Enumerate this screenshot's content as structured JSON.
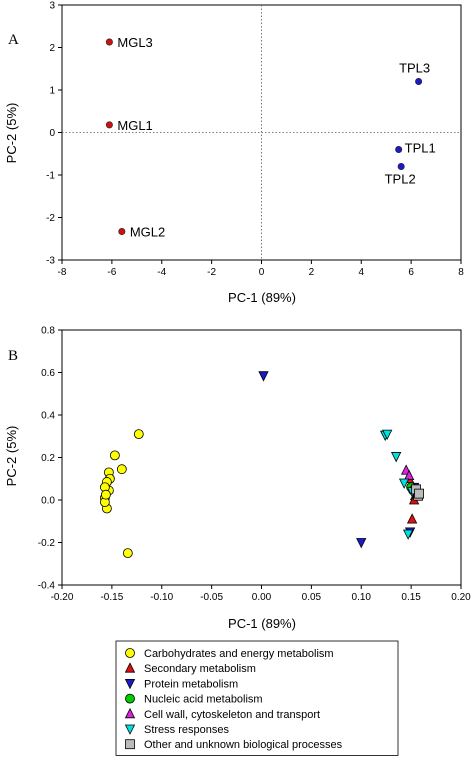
{
  "chart_data": [
    {
      "panel": "A",
      "type": "scatter",
      "xlabel": "PC-1 (89%)",
      "ylabel": "PC-2 (5%)",
      "xlim": [
        -8,
        8
      ],
      "ylim": [
        -3,
        3
      ],
      "xticks": [
        -8,
        -6,
        -4,
        -2,
        0,
        2,
        4,
        6,
        8
      ],
      "yticks": [
        -3,
        -2,
        -1,
        0,
        1,
        2,
        3
      ],
      "reference_lines": "dotted at x=0 and y=0",
      "points": [
        {
          "label": "MGL3",
          "x": -6.1,
          "y": 2.13,
          "color": "#cc1111"
        },
        {
          "label": "MGL1",
          "x": -6.1,
          "y": 0.18,
          "color": "#cc1111"
        },
        {
          "label": "MGL2",
          "x": -5.6,
          "y": -2.33,
          "color": "#cc1111"
        },
        {
          "label": "TPL3",
          "x": 6.3,
          "y": 1.2,
          "color": "#1a1acc"
        },
        {
          "label": "TPL1",
          "x": 5.5,
          "y": -0.4,
          "color": "#1a1acc"
        },
        {
          "label": "TPL2",
          "x": 5.6,
          "y": -0.8,
          "color": "#1a1acc"
        }
      ]
    },
    {
      "panel": "B",
      "type": "scatter",
      "xlabel": "PC-1 (89%)",
      "ylabel": "PC-2 (5%)",
      "xlim": [
        -0.2,
        0.2
      ],
      "ylim": [
        -0.4,
        0.8
      ],
      "xticks": [
        "-0.20",
        "-0.15",
        "-0.10",
        "-0.05",
        "0.00",
        "0.05",
        "0.10",
        "0.15",
        "0.20"
      ],
      "yticks": [
        "-0.4",
        "-0.2",
        "0.0",
        "0.2",
        "0.4",
        "0.6",
        "0.8"
      ],
      "legend_position": "below",
      "series": [
        {
          "name": "Carbohydrates and energy metabolism",
          "marker": "circle",
          "color": "#ffff00",
          "points": [
            [
              -0.123,
              0.31
            ],
            [
              -0.147,
              0.21
            ],
            [
              -0.14,
              0.145
            ],
            [
              -0.153,
              0.13
            ],
            [
              -0.152,
              0.1
            ],
            [
              -0.155,
              0.085
            ],
            [
              -0.153,
              0.045
            ],
            [
              -0.157,
              0.06
            ],
            [
              -0.157,
              0.01
            ],
            [
              -0.155,
              -0.04
            ],
            [
              -0.134,
              -0.25
            ],
            [
              -0.157,
              -0.01
            ],
            [
              -0.156,
              0.025
            ]
          ]
        },
        {
          "name": "Secondary metabolism",
          "marker": "triangle-up",
          "color": "#dd1111",
          "points": [
            [
              0.151,
              -0.09
            ],
            [
              0.148,
              0.1
            ],
            [
              0.154,
              0.02
            ],
            [
              0.153,
              0.0
            ]
          ]
        },
        {
          "name": "Protein metabolism",
          "marker": "triangle-down",
          "color": "#1a1acc",
          "points": [
            [
              0.002,
              0.585
            ],
            [
              0.1,
              -0.2
            ],
            [
              0.149,
              -0.15
            ],
            [
              0.153,
              0.06
            ]
          ]
        },
        {
          "name": "Nucleic acid metabolism",
          "marker": "circle",
          "color": "#00cc00",
          "points": [
            [
              0.15,
              0.06
            ],
            [
              0.152,
              0.045
            ]
          ]
        },
        {
          "name": "Cell wall, cytoskeleton and transport",
          "marker": "triangle-up",
          "color": "#dd22dd",
          "points": [
            [
              0.145,
              0.14
            ],
            [
              0.148,
              0.115
            ]
          ]
        },
        {
          "name": "Stress responses",
          "marker": "triangle-down",
          "color": "#00e0e0",
          "points": [
            [
              0.124,
              0.305
            ],
            [
              0.126,
              0.31
            ],
            [
              0.135,
              0.205
            ],
            [
              0.143,
              0.08
            ],
            [
              0.147,
              -0.16
            ],
            [
              0.151,
              0.04
            ]
          ]
        },
        {
          "name": "Other and unknown biological processes",
          "marker": "square",
          "color": "#bbbbbb",
          "points": [
            [
              0.157,
              0.02
            ],
            [
              0.155,
              0.05
            ],
            [
              0.158,
              0.03
            ]
          ]
        }
      ]
    }
  ],
  "panel_labels": {
    "a": "A",
    "b": "B"
  }
}
